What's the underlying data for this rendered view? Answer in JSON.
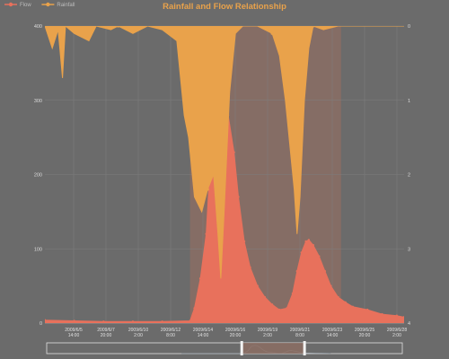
{
  "colors": {
    "background": "#6b6b6b",
    "flow": "#e8715c",
    "rainfall": "#e9a24b",
    "title": "#e9a24b",
    "grid": "#7e7e7e",
    "selection": "#8d6e63",
    "slider_track": "#e0e0e0"
  },
  "chart_data": {
    "type": "area",
    "title": "Rainfall and Flow Relationship",
    "legend": {
      "placement": "top-left",
      "items": [
        "Flow",
        "Rainfall"
      ]
    },
    "grid": true,
    "x_categories": [
      "2009/6/5\n14:00",
      "2009/6/7\n20:00",
      "2009/6/10\n2:00",
      "2009/6/12\n8:00",
      "2009/6/14\n14:00",
      "2009/6/16\n20:00",
      "2009/6/19\n2:00",
      "2009/6/21\n8:00",
      "2009/6/23\n14:00",
      "2009/6/25\n20:00",
      "2009/6/28\n2:00"
    ],
    "x_range_days": [
      0,
      24.5
    ],
    "y_left": {
      "label": "",
      "ticks": [
        "0",
        "100",
        "200",
        "300",
        "400"
      ],
      "ylim": [
        0,
        400
      ]
    },
    "y_right": {
      "label": "",
      "ticks": [
        "0",
        "1",
        "2",
        "3",
        "4"
      ],
      "ylim": [
        0,
        4
      ],
      "inverted": true
    },
    "marked_area": {
      "x_start_day": 9.9,
      "x_end_day": 20.2
    },
    "series": [
      {
        "name": "Flow",
        "axis": "left",
        "points": [
          [
            0,
            4
          ],
          [
            2,
            3
          ],
          [
            4,
            2
          ],
          [
            6,
            2
          ],
          [
            8,
            2
          ],
          [
            9.9,
            3
          ],
          [
            10.2,
            20
          ],
          [
            10.6,
            60
          ],
          [
            11.0,
            120
          ],
          [
            11.2,
            190
          ],
          [
            11.5,
            270
          ],
          [
            11.9,
            300
          ],
          [
            12.2,
            305
          ],
          [
            12.5,
            280
          ],
          [
            12.9,
            230
          ],
          [
            13.2,
            170
          ],
          [
            13.6,
            110
          ],
          [
            14.0,
            75
          ],
          [
            14.5,
            50
          ],
          [
            15.0,
            35
          ],
          [
            15.5,
            25
          ],
          [
            16.0,
            18
          ],
          [
            16.5,
            20
          ],
          [
            16.9,
            40
          ],
          [
            17.2,
            70
          ],
          [
            17.5,
            95
          ],
          [
            17.8,
            110
          ],
          [
            18.0,
            112
          ],
          [
            18.3,
            105
          ],
          [
            18.7,
            90
          ],
          [
            19.1,
            70
          ],
          [
            19.5,
            50
          ],
          [
            20.0,
            35
          ],
          [
            20.5,
            28
          ],
          [
            21.0,
            22
          ],
          [
            22.0,
            18
          ],
          [
            23.0,
            12
          ],
          [
            24.0,
            10
          ],
          [
            24.5,
            8
          ]
        ]
      },
      {
        "name": "Rainfall",
        "axis": "right",
        "points": [
          [
            0,
            0
          ],
          [
            0.5,
            0.3
          ],
          [
            0.9,
            0.05
          ],
          [
            1.2,
            0.7
          ],
          [
            1.4,
            0
          ],
          [
            2.0,
            0.1
          ],
          [
            3.0,
            0.2
          ],
          [
            3.5,
            0
          ],
          [
            4.5,
            0.05
          ],
          [
            5.0,
            0
          ],
          [
            6.0,
            0.1
          ],
          [
            7.0,
            0
          ],
          [
            8.0,
            0.05
          ],
          [
            9.0,
            0.2
          ],
          [
            9.5,
            1.2
          ],
          [
            9.8,
            1.5
          ],
          [
            10.2,
            2.3
          ],
          [
            10.7,
            2.5
          ],
          [
            11.1,
            2.2
          ],
          [
            11.5,
            2.0
          ],
          [
            11.8,
            2.8
          ],
          [
            12.0,
            3.4
          ],
          [
            12.2,
            2.6
          ],
          [
            12.6,
            0.9
          ],
          [
            13.0,
            0.1
          ],
          [
            13.5,
            0
          ],
          [
            14.5,
            0
          ],
          [
            15.5,
            0.1
          ],
          [
            16.0,
            0.4
          ],
          [
            16.4,
            1.0
          ],
          [
            16.7,
            1.6
          ],
          [
            17.0,
            2.2
          ],
          [
            17.2,
            2.8
          ],
          [
            17.4,
            2.3
          ],
          [
            17.7,
            1.0
          ],
          [
            18.0,
            0.3
          ],
          [
            18.3,
            0
          ],
          [
            19.0,
            0.05
          ],
          [
            20.0,
            0
          ],
          [
            21.0,
            0
          ],
          [
            22.0,
            0
          ],
          [
            23.0,
            0
          ],
          [
            24.5,
            0
          ]
        ]
      }
    ]
  }
}
